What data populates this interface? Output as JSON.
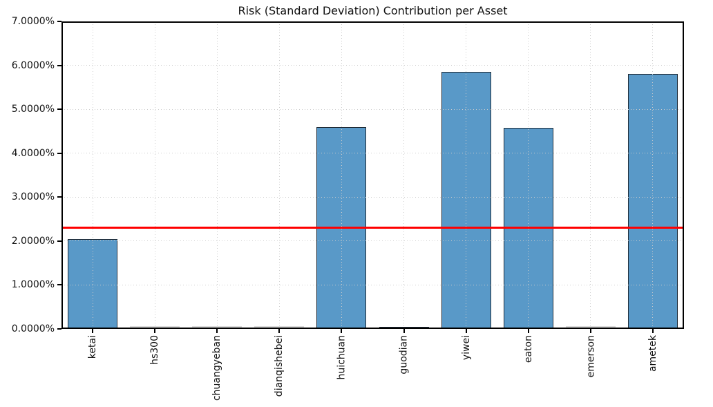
{
  "chart_data": {
    "type": "bar",
    "title": "Risk (Standard Deviation) Contribution per Asset",
    "categories": [
      "ketai",
      "hs300",
      "chuangyeban",
      "dianqishebei",
      "huichuan",
      "guodian",
      "yiwei",
      "eaton",
      "emerson",
      "ametek"
    ],
    "values": [
      2.05,
      0.0,
      0.0,
      0.0,
      4.6,
      0.04,
      5.85,
      4.57,
      0.0,
      5.8
    ],
    "unit": "percent",
    "xlabel": "",
    "ylabel": "",
    "ylim": [
      0,
      7
    ],
    "yticks": [
      "0.0000%",
      "1.0000%",
      "2.0000%",
      "3.0000%",
      "4.0000%",
      "5.0000%",
      "6.0000%",
      "7.0000%"
    ],
    "grid": true,
    "legend_position": "none",
    "reference_line": {
      "type": "horizontal",
      "value": 2.3,
      "color": "#ff0000"
    },
    "bar_color": "#5999c8",
    "bar_edge_color": "#1e2a36",
    "grid_color": "#cccccc",
    "axis_color": "#000000"
  }
}
